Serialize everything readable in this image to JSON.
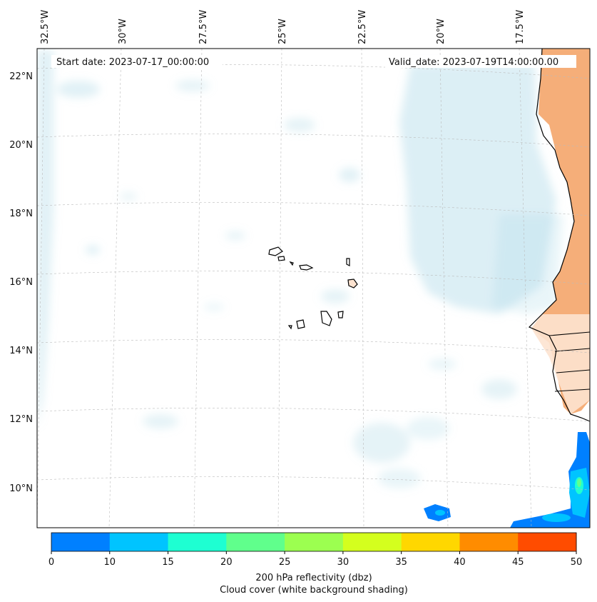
{
  "header": {
    "start_date": "Start date: 2023-07-17_00:00:00",
    "valid_date": "Valid_date: 2023-07-19T14:00:00.00"
  },
  "map": {
    "longitude_labels": [
      "32.5°W",
      "30°W",
      "27.5°W",
      "25°W",
      "22.5°W",
      "20°W",
      "17.5°W"
    ],
    "latitude_labels": [
      "22°N",
      "20°N",
      "18°N",
      "16°N",
      "14°N",
      "12°N",
      "10°N"
    ],
    "colors": {
      "land": "#f4a56a",
      "cloud": "#a8d8e6",
      "coast": "#000000",
      "grid": "#bbbbbb"
    }
  },
  "colorbar": {
    "ticks": [
      "0",
      "10",
      "15",
      "20",
      "25",
      "30",
      "35",
      "40",
      "45",
      "50"
    ],
    "colors": [
      "#0080ff",
      "#00c4ff",
      "#1effd2",
      "#60ff8c",
      "#9cff50",
      "#d4ff1e",
      "#ffd700",
      "#ff8c00",
      "#ff4c00"
    ],
    "label_line1": "200 hPa reflectivity (dbz)",
    "label_line2": "Cloud cover (white background shading)"
  }
}
